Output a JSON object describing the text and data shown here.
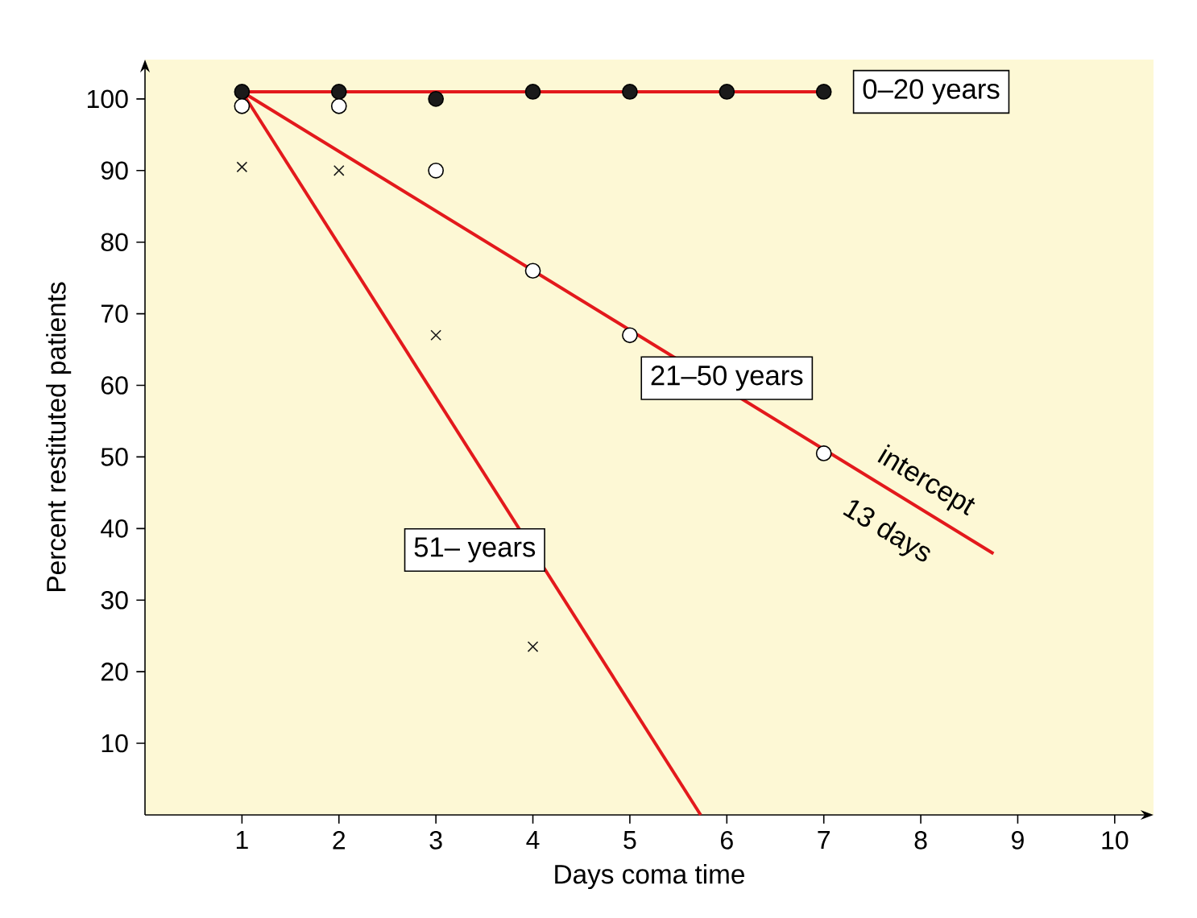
{
  "chart_data": {
    "type": "scatter",
    "xlabel": "Days coma time",
    "ylabel": "Percent restituted patients",
    "xlim": [
      0,
      10.4
    ],
    "ylim": [
      0,
      105.5
    ],
    "xticks": [
      1,
      2,
      3,
      4,
      5,
      6,
      7,
      8,
      9,
      10
    ],
    "yticks": [
      10,
      20,
      30,
      40,
      50,
      60,
      70,
      80,
      90,
      100
    ],
    "grid": false,
    "annotations": [
      "intercept",
      "13 days"
    ],
    "series": [
      {
        "type": "scatter",
        "color": "#1a1a1a",
        "marker": "circle",
        "x": [
          1,
          2,
          3,
          4,
          5,
          6,
          7
        ],
        "values": [
          101,
          101,
          100,
          101,
          101,
          101,
          101
        ]
      },
      {
        "type": "scatter",
        "color": "#ffffff",
        "marker": "circle",
        "x": [
          1,
          2,
          3,
          4,
          5,
          7
        ],
        "values": [
          99,
          99,
          90,
          76,
          67,
          50.5
        ]
      },
      {
        "type": "scatter",
        "color": "#1a1a1a",
        "marker": "cross",
        "x": [
          1,
          2,
          3,
          4
        ],
        "values": [
          90.5,
          90,
          67,
          23.5
        ]
      },
      {
        "type": "line",
        "name": "0–20 years",
        "color": "#e3191c",
        "marker": "none",
        "x": [
          1,
          7
        ],
        "values": [
          101,
          101
        ]
      },
      {
        "type": "line",
        "name": "21–50 years",
        "color": "#e3191c",
        "marker": "none",
        "x": [
          1,
          8.75
        ],
        "values": [
          101,
          36.5
        ]
      },
      {
        "type": "line",
        "name": "51– years",
        "color": "#e3191c",
        "marker": "none",
        "x": [
          1,
          5.73
        ],
        "values": [
          101,
          0
        ]
      }
    ]
  }
}
